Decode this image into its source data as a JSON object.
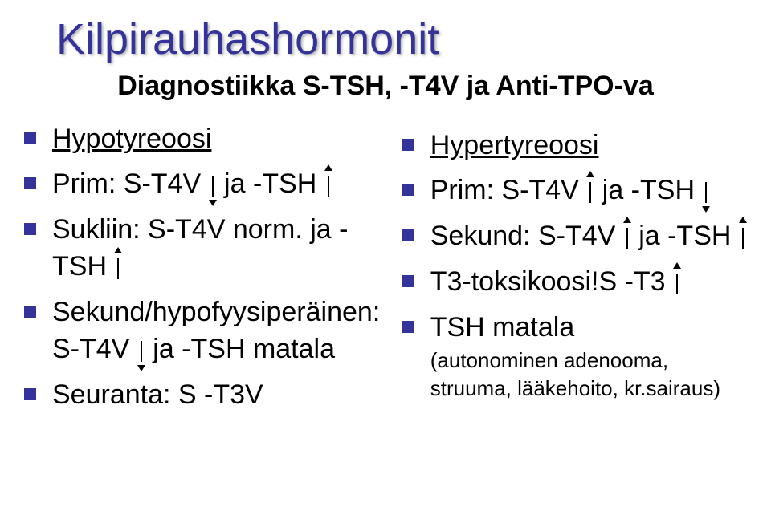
{
  "title": "Kilpirauhashormonit",
  "subtitle": "Diagnostiikka S-TSH, -T4V ja Anti-TPO-va",
  "colors": {
    "title_color": "#333399",
    "bullet_color": "#333399",
    "text_color": "#000000",
    "background_color": "#ffffff"
  },
  "fonts": {
    "title_size": 54,
    "subtitle_size": 34,
    "body_size": 34,
    "subtext_size": 26,
    "family": "Arial"
  },
  "left": {
    "heading": "Hypotyreoosi",
    "items": [
      {
        "pre": "Prim: S-T4V",
        "arrow1": "down",
        "mid": "   ja -TSH",
        "arrow2": "up"
      },
      {
        "pre": "Sukliin: S-T4V norm. ja -TSH",
        "arrow1": "up"
      },
      {
        "pre": "Sekund/hypofyysiperäinen: S-T4V",
        "arrow1": "down",
        "mid": " ja -TSH matala"
      },
      {
        "pre": "Seuranta: S -T3V"
      }
    ]
  },
  "right": {
    "heading": "Hypertyreoosi",
    "items": [
      {
        "pre": "Prim: S-T4V",
        "arrow1": "up",
        "mid": " ja -TSH",
        "arrow2": "down"
      },
      {
        "pre": "Sekund: S-T4V",
        "arrow1": "up",
        "mid": "  ja -TSH",
        "arrow2": "up"
      },
      {
        "pre": "T3-toksikoosi!S -T3",
        "arrow1": "up"
      },
      {
        "pre": "TSH matala",
        "sub": "(autonominen adenooma, struuma, lääkehoito, kr.sairaus)"
      }
    ]
  }
}
